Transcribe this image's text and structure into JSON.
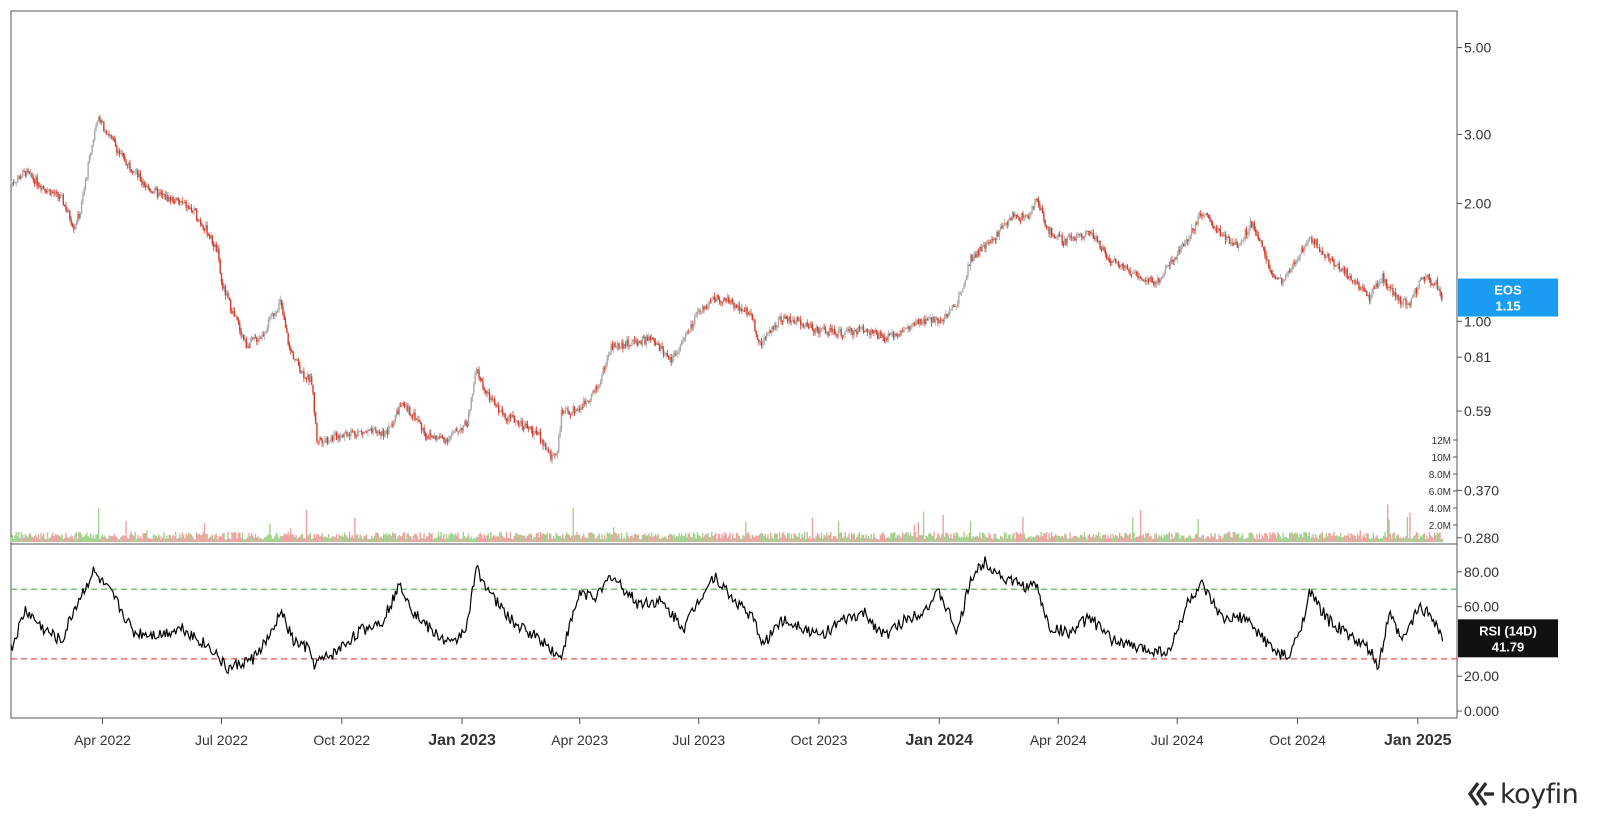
{
  "chart_data": {
    "type": "candlestick",
    "price_panel": {
      "symbol": "EOS",
      "last_value": "1.15",
      "scale": "log",
      "y_ticks": [
        "5.00",
        "3.00",
        "2.00",
        "1.00",
        "0.81",
        "0.59",
        "0.370",
        "0.280"
      ],
      "y_tick_values": [
        5.0,
        3.0,
        2.0,
        1.0,
        0.81,
        0.59,
        0.37,
        0.28
      ],
      "ylim": [
        0.27,
        6.2
      ],
      "series_points": [
        [
          "2022-01-21",
          2.25
        ],
        [
          "2022-02-01",
          2.4
        ],
        [
          "2022-02-15",
          2.2
        ],
        [
          "2022-03-01",
          2.05
        ],
        [
          "2022-03-10",
          1.75
        ],
        [
          "2022-03-15",
          1.9
        ],
        [
          "2022-03-22",
          2.6
        ],
        [
          "2022-03-28",
          3.3
        ],
        [
          "2022-04-06",
          3.0
        ],
        [
          "2022-04-15",
          2.65
        ],
        [
          "2022-04-22",
          2.5
        ],
        [
          "2022-05-05",
          2.2
        ],
        [
          "2022-05-15",
          2.1
        ],
        [
          "2022-06-01",
          2.0
        ],
        [
          "2022-06-10",
          1.9
        ],
        [
          "2022-06-20",
          1.7
        ],
        [
          "2022-06-28",
          1.5
        ],
        [
          "2022-07-01",
          1.25
        ],
        [
          "2022-07-10",
          1.05
        ],
        [
          "2022-07-20",
          0.87
        ],
        [
          "2022-08-01",
          0.92
        ],
        [
          "2022-08-10",
          1.05
        ],
        [
          "2022-08-15",
          1.12
        ],
        [
          "2022-08-22",
          0.85
        ],
        [
          "2022-09-01",
          0.74
        ],
        [
          "2022-09-08",
          0.7
        ],
        [
          "2022-09-12",
          0.5
        ],
        [
          "2022-09-20",
          0.5
        ],
        [
          "2022-10-05",
          0.52
        ],
        [
          "2022-10-20",
          0.52
        ],
        [
          "2022-11-05",
          0.52
        ],
        [
          "2022-11-15",
          0.61
        ],
        [
          "2022-11-25",
          0.58
        ],
        [
          "2022-12-05",
          0.51
        ],
        [
          "2022-12-20",
          0.5
        ],
        [
          "2023-01-05",
          0.55
        ],
        [
          "2023-01-12",
          0.75
        ],
        [
          "2023-01-20",
          0.65
        ],
        [
          "2023-02-01",
          0.58
        ],
        [
          "2023-02-15",
          0.55
        ],
        [
          "2023-03-01",
          0.51
        ],
        [
          "2023-03-10",
          0.45
        ],
        [
          "2023-03-15",
          0.47
        ],
        [
          "2023-03-18",
          0.58
        ],
        [
          "2023-04-01",
          0.6
        ],
        [
          "2023-04-15",
          0.68
        ],
        [
          "2023-04-25",
          0.86
        ],
        [
          "2023-05-10",
          0.88
        ],
        [
          "2023-05-25",
          0.9
        ],
        [
          "2023-06-10",
          0.8
        ],
        [
          "2023-06-20",
          0.9
        ],
        [
          "2023-07-01",
          1.05
        ],
        [
          "2023-07-13",
          1.15
        ],
        [
          "2023-07-25",
          1.12
        ],
        [
          "2023-08-10",
          1.05
        ],
        [
          "2023-08-17",
          0.87
        ],
        [
          "2023-09-01",
          1.02
        ],
        [
          "2023-09-15",
          1.0
        ],
        [
          "2023-10-01",
          0.95
        ],
        [
          "2023-10-20",
          0.93
        ],
        [
          "2023-11-05",
          0.96
        ],
        [
          "2023-11-20",
          0.9
        ],
        [
          "2023-12-05",
          0.95
        ],
        [
          "2023-12-20",
          1.0
        ],
        [
          "2024-01-05",
          1.02
        ],
        [
          "2024-01-15",
          1.12
        ],
        [
          "2024-01-25",
          1.45
        ],
        [
          "2024-02-10",
          1.6
        ],
        [
          "2024-02-25",
          1.85
        ],
        [
          "2024-03-10",
          1.85
        ],
        [
          "2024-03-15",
          2.05
        ],
        [
          "2024-03-25",
          1.7
        ],
        [
          "2024-04-05",
          1.6
        ],
        [
          "2024-04-15",
          1.65
        ],
        [
          "2024-04-25",
          1.7
        ],
        [
          "2024-05-10",
          1.45
        ],
        [
          "2024-05-25",
          1.35
        ],
        [
          "2024-06-15",
          1.25
        ],
        [
          "2024-06-25",
          1.4
        ],
        [
          "2024-07-10",
          1.65
        ],
        [
          "2024-07-20",
          1.9
        ],
        [
          "2024-08-01",
          1.7
        ],
        [
          "2024-08-15",
          1.55
        ],
        [
          "2024-08-28",
          1.8
        ],
        [
          "2024-09-10",
          1.35
        ],
        [
          "2024-09-20",
          1.25
        ],
        [
          "2024-10-01",
          1.45
        ],
        [
          "2024-10-10",
          1.65
        ],
        [
          "2024-10-25",
          1.45
        ],
        [
          "2024-11-05",
          1.35
        ],
        [
          "2024-11-15",
          1.25
        ],
        [
          "2024-11-25",
          1.15
        ],
        [
          "2024-12-05",
          1.3
        ],
        [
          "2024-12-15",
          1.15
        ],
        [
          "2024-12-25",
          1.1
        ],
        [
          "2025-01-05",
          1.3
        ],
        [
          "2025-01-15",
          1.25
        ],
        [
          "2025-01-20",
          1.15
        ]
      ]
    },
    "volume_panel": {
      "y_ticks": [
        "12M",
        "10M",
        "8.0M",
        "6.0M",
        "4.0M",
        "2.0M"
      ],
      "y_tick_values": [
        12,
        10,
        8,
        6,
        4,
        2
      ],
      "unit": "M",
      "ylim": [
        0,
        13
      ]
    },
    "rsi_panel": {
      "name": "RSI (14D)",
      "last_value": "41.79",
      "y_ticks": [
        "80.00",
        "60.00",
        "20.00",
        "0.000"
      ],
      "y_tick_values": [
        80,
        60,
        20,
        0
      ],
      "ylim": [
        -4,
        96
      ],
      "overbought": 70,
      "oversold": 30,
      "series_points": [
        [
          "2022-01-21",
          35
        ],
        [
          "2022-02-01",
          58
        ],
        [
          "2022-02-15",
          47
        ],
        [
          "2022-03-01",
          40
        ],
        [
          "2022-03-10",
          58
        ],
        [
          "2022-03-25",
          80
        ],
        [
          "2022-04-10",
          65
        ],
        [
          "2022-04-25",
          45
        ],
        [
          "2022-05-15",
          44
        ],
        [
          "2022-06-01",
          48
        ],
        [
          "2022-06-15",
          40
        ],
        [
          "2022-06-25",
          35
        ],
        [
          "2022-07-05",
          24
        ],
        [
          "2022-07-25",
          30
        ],
        [
          "2022-08-10",
          46
        ],
        [
          "2022-08-15",
          58
        ],
        [
          "2022-08-25",
          40
        ],
        [
          "2022-09-05",
          36
        ],
        [
          "2022-09-10",
          27
        ],
        [
          "2022-09-25",
          33
        ],
        [
          "2022-10-15",
          46
        ],
        [
          "2022-11-01",
          52
        ],
        [
          "2022-11-15",
          73
        ],
        [
          "2022-11-25",
          57
        ],
        [
          "2022-12-10",
          45
        ],
        [
          "2022-12-25",
          38
        ],
        [
          "2023-01-05",
          50
        ],
        [
          "2023-01-12",
          82
        ],
        [
          "2023-01-25",
          65
        ],
        [
          "2023-02-10",
          50
        ],
        [
          "2023-03-01",
          42
        ],
        [
          "2023-03-10",
          36
        ],
        [
          "2023-03-17",
          30
        ],
        [
          "2023-04-01",
          68
        ],
        [
          "2023-04-15",
          66
        ],
        [
          "2023-04-25",
          78
        ],
        [
          "2023-05-15",
          62
        ],
        [
          "2023-06-01",
          63
        ],
        [
          "2023-06-20",
          48
        ],
        [
          "2023-07-01",
          64
        ],
        [
          "2023-07-13",
          78
        ],
        [
          "2023-07-25",
          66
        ],
        [
          "2023-08-10",
          55
        ],
        [
          "2023-08-20",
          38
        ],
        [
          "2023-09-01",
          52
        ],
        [
          "2023-09-15",
          50
        ],
        [
          "2023-10-01",
          43
        ],
        [
          "2023-10-20",
          52
        ],
        [
          "2023-11-05",
          56
        ],
        [
          "2023-11-20",
          43
        ],
        [
          "2023-12-05",
          52
        ],
        [
          "2023-12-20",
          58
        ],
        [
          "2024-01-01",
          68
        ],
        [
          "2024-01-15",
          45
        ],
        [
          "2024-01-25",
          76
        ],
        [
          "2024-02-05",
          86
        ],
        [
          "2024-02-20",
          76
        ],
        [
          "2024-03-10",
          71
        ],
        [
          "2024-03-15",
          73
        ],
        [
          "2024-03-25",
          48
        ],
        [
          "2024-04-10",
          45
        ],
        [
          "2024-04-25",
          54
        ],
        [
          "2024-05-10",
          42
        ],
        [
          "2024-06-01",
          36
        ],
        [
          "2024-06-25",
          34
        ],
        [
          "2024-07-10",
          64
        ],
        [
          "2024-07-20",
          72
        ],
        [
          "2024-08-05",
          52
        ],
        [
          "2024-08-20",
          54
        ],
        [
          "2024-09-05",
          42
        ],
        [
          "2024-09-15",
          33
        ],
        [
          "2024-09-25",
          31
        ],
        [
          "2024-10-05",
          52
        ],
        [
          "2024-10-10",
          68
        ],
        [
          "2024-10-25",
          52
        ],
        [
          "2024-11-10",
          43
        ],
        [
          "2024-11-25",
          35
        ],
        [
          "2024-12-02",
          25
        ],
        [
          "2024-12-10",
          56
        ],
        [
          "2024-12-20",
          40
        ],
        [
          "2025-01-02",
          60
        ],
        [
          "2025-01-12",
          55
        ],
        [
          "2025-01-20",
          42
        ]
      ]
    },
    "x_ticks": [
      {
        "label": "Apr 2022",
        "date": "2022-04-01",
        "bold": false
      },
      {
        "label": "Jul 2022",
        "date": "2022-07-01",
        "bold": false
      },
      {
        "label": "Oct 2022",
        "date": "2022-10-01",
        "bold": false
      },
      {
        "label": "Jan 2023",
        "date": "2023-01-01",
        "bold": true
      },
      {
        "label": "Apr 2023",
        "date": "2023-04-01",
        "bold": false
      },
      {
        "label": "Jul 2023",
        "date": "2023-07-01",
        "bold": false
      },
      {
        "label": "Oct 2023",
        "date": "2023-10-01",
        "bold": false
      },
      {
        "label": "Jan 2024",
        "date": "2024-01-01",
        "bold": true
      },
      {
        "label": "Apr 2024",
        "date": "2024-04-01",
        "bold": false
      },
      {
        "label": "Jul 2024",
        "date": "2024-07-01",
        "bold": false
      },
      {
        "label": "Oct 2024",
        "date": "2024-10-01",
        "bold": false
      },
      {
        "label": "Jan 2025",
        "date": "2025-01-01",
        "bold": true
      }
    ],
    "xlim": [
      "2022-01-21",
      "2025-01-31"
    ],
    "colors": {
      "up": "#a8a8a8",
      "down": "#d23a2a",
      "volume_up": "#9fd38f",
      "volume_down": "#f0a0a0",
      "rsi_line": "#000000",
      "overbought_line": "#5cb85c",
      "oversold_line": "#e05555",
      "price_badge": "#1a9cf2",
      "rsi_badge": "#111111"
    }
  },
  "branding": {
    "logo_text": "koyfin"
  }
}
